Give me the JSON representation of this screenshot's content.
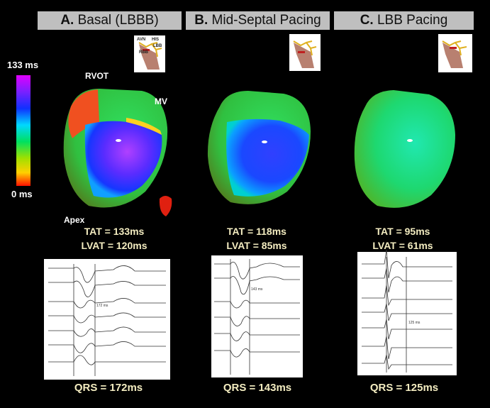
{
  "panels": [
    {
      "letter": "A.",
      "title": "Basal (LBBB)",
      "tat": "TAT = 133ms",
      "lvat": "LVAT = 120ms",
      "qrs": "QRS = 172ms",
      "ecg_annotation": "172 ms"
    },
    {
      "letter": "B.",
      "title": "Mid-Septal Pacing",
      "tat": "TAT = 118ms",
      "lvat": "LVAT = 85ms",
      "qrs": "QRS = 143ms",
      "ecg_annotation": "143 ms"
    },
    {
      "letter": "C.",
      "title": "LBB Pacing",
      "tat": "TAT = 95ms",
      "lvat": "LVAT = 61ms",
      "qrs": "QRS = 125ms",
      "ecg_annotation": "125 ms"
    }
  ],
  "colorbar": {
    "max_label": "133 ms",
    "min_label": "0 ms"
  },
  "anatomy_labels": {
    "rvot": "RVOT",
    "mv": "MV",
    "apex": "Apex"
  },
  "inset_labels": {
    "avn": "AVN",
    "his": "HIS",
    "lbb": "LBB",
    "rbb": "RBB"
  },
  "colors": {
    "background": "#000000",
    "title_bar": "#bfbfbf",
    "measure_text": "#f3ecc0"
  }
}
